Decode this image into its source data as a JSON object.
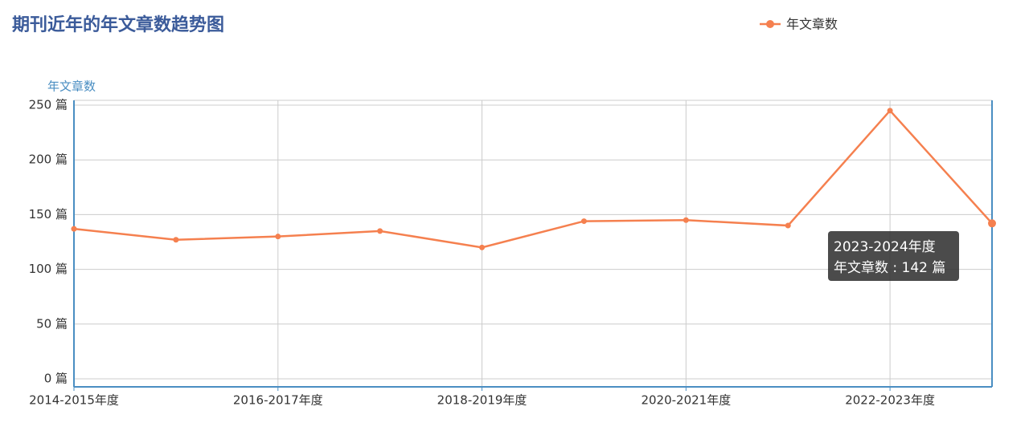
{
  "chart_data": {
    "type": "line",
    "title": "期刊近年的年文章数趋势图",
    "y_axis_title": "年文章数",
    "categories": [
      "2014-2015年度",
      null,
      "2016-2017年度",
      null,
      "2018-2019年度",
      null,
      "2020-2021年度",
      null,
      "2022-2023年度",
      null
    ],
    "series": [
      {
        "name": "年文章数",
        "color": "#f5804f",
        "values": [
          137,
          127,
          130,
          135,
          120,
          144,
          145,
          140,
          245,
          142
        ]
      }
    ],
    "ylim": [
      0,
      250
    ],
    "yticks": [
      {
        "value": 0,
        "label": "0 篇"
      },
      {
        "value": 50,
        "label": "50 篇"
      },
      {
        "value": 100,
        "label": "100 篇"
      },
      {
        "value": 150,
        "label": "150 篇"
      },
      {
        "value": 200,
        "label": "200 篇"
      },
      {
        "value": 250,
        "label": "250 篇"
      }
    ],
    "grid": true,
    "legend": "top-right",
    "tooltip": {
      "category": "2023-2024年度",
      "label": "142 篇"
    }
  }
}
